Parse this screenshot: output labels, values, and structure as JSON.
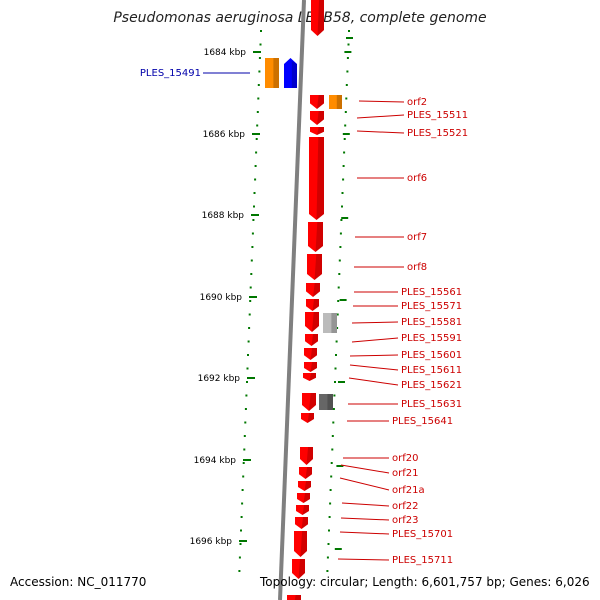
{
  "title": "Pseudomonas aeruginosa LESB58, complete genome",
  "footer": {
    "accession": "Accession: NC_011770",
    "topology": "Topology: circular; Length: 6,601,757 bp; Genes: 6,026"
  },
  "scale_ticks": [
    "1684 kbp",
    "1686 kbp",
    "1688 kbp",
    "1690 kbp",
    "1692 kbp",
    "1694 kbp",
    "1696 kbp"
  ],
  "colors": {
    "genome_line": "#808080",
    "forward_gene": "#ff0000",
    "left_gene_orange": "#ff8c00",
    "left_gene_blue": "#0000ff",
    "tick_green": "#007700",
    "label_red": "#cc0000",
    "label_blue": "#0000aa",
    "pseudo_light": "#bbbbbb",
    "pseudo_dark": "#666666"
  },
  "left_labels": [
    "PLES_15491"
  ],
  "right_labels": [
    "orf2",
    "PLES_15511",
    "PLES_15521",
    "orf6",
    "orf7",
    "orf8",
    "PLES_15561",
    "PLES_15571",
    "PLES_15581",
    "PLES_15591",
    "PLES_15601",
    "PLES_15611",
    "PLES_15621",
    "PLES_15631",
    "PLES_15641",
    "orf20",
    "orf21",
    "orf21a",
    "orf22",
    "orf23",
    "PLES_15701",
    "PLES_15711"
  ]
}
